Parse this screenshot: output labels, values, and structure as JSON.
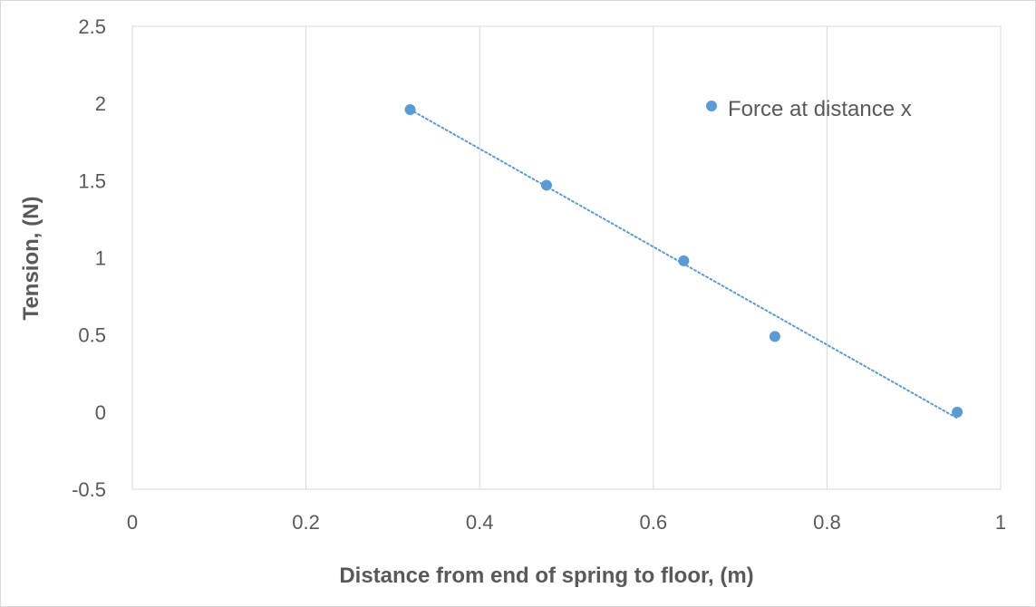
{
  "chart_data": {
    "type": "scatter",
    "title": "",
    "xlabel": "Distance from end of spring to floor, (m)",
    "ylabel": "Tension, (N)",
    "xlim": [
      0,
      1
    ],
    "ylim": [
      -0.5,
      2.5
    ],
    "xticks": [
      "0",
      "0.2",
      "0.4",
      "0.6",
      "0.8",
      "1"
    ],
    "yticks": [
      "-0.5",
      "0",
      "0.5",
      "1",
      "1.5",
      "2",
      "2.5"
    ],
    "grid": "vertical",
    "legend_position": "top-right",
    "series": [
      {
        "name": "Force at distance x",
        "color": "#5b9bd5",
        "points": [
          {
            "x": 0.32,
            "y": 1.96
          },
          {
            "x": 0.477,
            "y": 1.47
          },
          {
            "x": 0.635,
            "y": 0.98
          },
          {
            "x": 0.74,
            "y": 0.49
          },
          {
            "x": 0.95,
            "y": 0.0
          }
        ]
      }
    ],
    "trendline": {
      "type": "linear",
      "style": "dotted",
      "color": "#5b9bd5",
      "x_start": 0.32,
      "x_end": 0.95,
      "y_start": 1.96,
      "y_end": -0.04
    }
  }
}
